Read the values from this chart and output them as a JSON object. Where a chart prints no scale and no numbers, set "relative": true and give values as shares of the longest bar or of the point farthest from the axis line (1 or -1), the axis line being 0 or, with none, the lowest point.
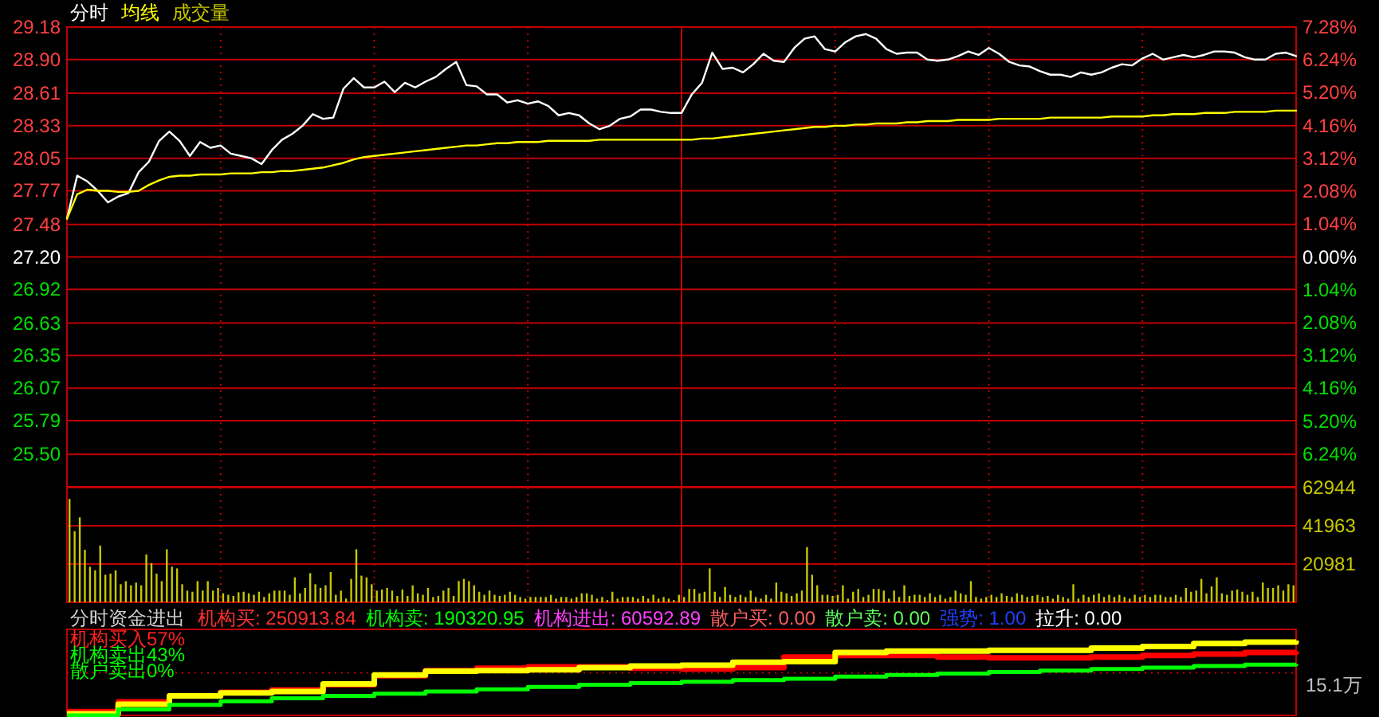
{
  "chart_data": [
    {
      "type": "line",
      "categories": [
        null,
        null,
        null,
        null,
        null,
        null,
        null,
        null,
        null,
        null,
        null,
        null,
        null,
        null,
        null,
        null,
        null,
        null,
        null,
        null,
        null,
        null,
        null,
        null,
        null,
        null,
        null,
        null,
        null,
        null,
        null,
        null,
        null,
        null,
        null,
        null,
        null,
        null,
        null,
        null,
        null,
        null,
        null,
        null,
        null,
        null,
        null,
        null,
        null,
        null,
        null,
        null,
        null,
        null,
        null,
        null,
        null,
        null,
        null,
        null,
        null,
        null,
        null,
        null,
        null,
        null,
        null,
        null,
        null,
        null,
        null,
        null,
        null,
        null,
        null,
        null,
        null,
        null,
        null,
        null,
        null,
        null,
        null,
        null,
        null,
        null,
        null,
        null,
        null,
        null,
        null,
        null,
        null,
        null,
        null,
        null,
        null,
        null,
        null,
        null,
        null,
        null,
        null,
        null,
        null,
        null,
        null,
        null,
        null,
        null,
        null,
        null,
        null,
        null,
        null,
        null,
        null,
        null,
        null,
        null,
        null
      ],
      "ylim": [
        25.22,
        29.18
      ],
      "yticks": [
        29.18,
        {
          "value": 28.9,
          "label": "28.90"
        },
        28.61,
        28.33,
        28.05,
        27.77,
        27.48,
        {
          "value": 27.2,
          "label": "27.20"
        },
        26.92,
        26.63,
        26.35,
        26.07,
        25.79,
        {
          "value": 25.5,
          "label": "25.50"
        }
      ],
      "y2lim": [
        -7.28,
        7.28
      ],
      "y2ticks": [
        {
          "value": 7.28,
          "label": "7.28%"
        },
        {
          "value": 6.24,
          "label": "6.24%"
        },
        {
          "value": 5.2,
          "label": "5.20%"
        },
        {
          "value": 4.16,
          "label": "4.16%"
        },
        {
          "value": 3.12,
          "label": "3.12%"
        },
        {
          "value": 2.08,
          "label": "2.08%"
        },
        {
          "value": 1.04,
          "label": "1.04%"
        },
        {
          "value": 0,
          "label": "0.00%"
        },
        {
          "value": -1.04,
          "label": "1.04%"
        },
        {
          "value": -2.08,
          "label": "2.08%"
        },
        {
          "value": -3.12,
          "label": "3.12%"
        },
        {
          "value": -4.16,
          "label": "4.16%"
        },
        {
          "value": -5.2,
          "label": "5.20%"
        },
        {
          "value": -6.24,
          "label": "6.24%"
        }
      ],
      "grid": true,
      "series": [
        {
          "name": "分时",
          "color": "#ffffff",
          "values": [
            27.53,
            27.9,
            27.85,
            27.77,
            27.67,
            27.72,
            27.75,
            27.93,
            28.02,
            28.2,
            28.28,
            28.2,
            28.07,
            28.19,
            28.14,
            28.16,
            28.09,
            28.07,
            28.05,
            28.0,
            28.12,
            28.21,
            28.26,
            28.33,
            28.43,
            28.39,
            28.4,
            28.65,
            28.74,
            28.66,
            28.66,
            28.71,
            28.62,
            28.7,
            28.66,
            28.71,
            28.75,
            28.82,
            28.88,
            28.68,
            28.67,
            28.6,
            28.6,
            28.53,
            28.55,
            28.52,
            28.54,
            28.5,
            28.42,
            28.44,
            28.42,
            28.35,
            28.3,
            28.33,
            28.39,
            28.41,
            28.47,
            28.47,
            28.45,
            28.44,
            28.44,
            28.6,
            28.7,
            28.96,
            28.82,
            28.83,
            28.79,
            28.86,
            28.95,
            28.89,
            28.88,
            29.0,
            29.08,
            29.1,
            28.99,
            28.97,
            29.05,
            29.1,
            29.12,
            29.08,
            28.99,
            28.95,
            28.96,
            28.96,
            28.9,
            28.89,
            28.9,
            28.93,
            28.97,
            28.94,
            29.0,
            28.95,
            28.88,
            28.85,
            28.84,
            28.8,
            28.77,
            28.77,
            28.75,
            28.79,
            28.77,
            28.79,
            28.83,
            28.86,
            28.85,
            28.91,
            28.95,
            28.9,
            28.92,
            28.94,
            28.92,
            28.94,
            28.97,
            28.97,
            28.96,
            28.92,
            28.9,
            28.9,
            28.95,
            28.96,
            28.93
          ]
        },
        {
          "name": "均线",
          "color": "#ffff00",
          "values": [
            27.53,
            27.74,
            27.78,
            27.77,
            27.77,
            27.76,
            27.76,
            27.77,
            27.82,
            27.86,
            27.89,
            27.9,
            27.9,
            27.91,
            27.91,
            27.91,
            27.92,
            27.92,
            27.92,
            27.93,
            27.93,
            27.94,
            27.94,
            27.95,
            27.96,
            27.97,
            27.99,
            28.01,
            28.04,
            28.06,
            28.07,
            28.08,
            28.09,
            28.1,
            28.11,
            28.12,
            28.13,
            28.14,
            28.15,
            28.16,
            28.16,
            28.17,
            28.18,
            28.18,
            28.19,
            28.19,
            28.19,
            28.2,
            28.2,
            28.2,
            28.2,
            28.2,
            28.21,
            28.21,
            28.21,
            28.21,
            28.21,
            28.21,
            28.21,
            28.21,
            28.21,
            28.21,
            28.22,
            28.22,
            28.23,
            28.24,
            28.25,
            28.26,
            28.27,
            28.28,
            28.29,
            28.3,
            28.31,
            28.32,
            28.32,
            28.33,
            28.33,
            28.34,
            28.34,
            28.35,
            28.35,
            28.35,
            28.36,
            28.36,
            28.37,
            28.37,
            28.37,
            28.38,
            28.38,
            28.38,
            28.38,
            28.39,
            28.39,
            28.39,
            28.39,
            28.39,
            28.4,
            28.4,
            28.4,
            28.4,
            28.4,
            28.4,
            28.41,
            28.41,
            28.41,
            28.41,
            28.42,
            28.42,
            28.43,
            28.43,
            28.43,
            28.44,
            28.44,
            28.44,
            28.45,
            28.45,
            28.45,
            28.45,
            28.46,
            28.46,
            28.46
          ]
        }
      ]
    },
    {
      "type": "bar",
      "categories": [
        null,
        null,
        null,
        null,
        null,
        null,
        null,
        null,
        null,
        null,
        null,
        null,
        null,
        null,
        null,
        null,
        null,
        null,
        null,
        null,
        null,
        null,
        null,
        null,
        null,
        null,
        null,
        null,
        null,
        null,
        null,
        null,
        null,
        null,
        null,
        null,
        null,
        null,
        null,
        null,
        null,
        null,
        null,
        null,
        null,
        null,
        null,
        null,
        null,
        null,
        null,
        null,
        null,
        null,
        null,
        null,
        null,
        null,
        null,
        null,
        null,
        null,
        null,
        null,
        null,
        null,
        null,
        null,
        null,
        null,
        null,
        null,
        null,
        null,
        null,
        null,
        null,
        null,
        null,
        null,
        null,
        null,
        null,
        null,
        null,
        null,
        null,
        null,
        null,
        null,
        null,
        null,
        null,
        null,
        null,
        null,
        null,
        null,
        null,
        null,
        null,
        null,
        null,
        null,
        null,
        null,
        null,
        null,
        null,
        null,
        null,
        null,
        null,
        null,
        null,
        null,
        null,
        null,
        null,
        null,
        null,
        null,
        null,
        null,
        null,
        null,
        null,
        null,
        null,
        null,
        null,
        null,
        null,
        null,
        null,
        null,
        null,
        null,
        null,
        null,
        null,
        null,
        null,
        null,
        null,
        null,
        null,
        null,
        null,
        null,
        null,
        null,
        null,
        null,
        null,
        null,
        null,
        null,
        null,
        null,
        null,
        null,
        null,
        null,
        null,
        null,
        null,
        null,
        null,
        null,
        null,
        null,
        null,
        null,
        null,
        null,
        null,
        null,
        null,
        null,
        null,
        null,
        null,
        null,
        null,
        null,
        null,
        null,
        null,
        null,
        null,
        null,
        null,
        null,
        null,
        null,
        null,
        null,
        null,
        null,
        null,
        null,
        null,
        null,
        null,
        null,
        null,
        null,
        null,
        null,
        null,
        null,
        null,
        null,
        null,
        null,
        null,
        null,
        null,
        null,
        null,
        null,
        null,
        null,
        null,
        null,
        null,
        null,
        null,
        null,
        null,
        null,
        null,
        null,
        null,
        null,
        null,
        null,
        null,
        null
      ],
      "y2lim": [
        0,
        62944
      ],
      "y2ticks": [
        20981,
        41963,
        62944
      ],
      "grid": true,
      "series": [
        {
          "name": "成交量",
          "color": "#c8c800",
          "axis": "y2",
          "values": [
            56700,
            39000,
            46600,
            28800,
            19500,
            17500,
            31100,
            15100,
            15700,
            17500,
            9900,
            11600,
            9300,
            10800,
            9300,
            26200,
            21500,
            15700,
            11600,
            29100,
            19500,
            18600,
            9900,
            6400,
            5800,
            11600,
            6400,
            11600,
            6400,
            7900,
            4900,
            4100,
            3500,
            5500,
            5800,
            4900,
            4100,
            5800,
            2900,
            4900,
            6400,
            6400,
            6400,
            4100,
            13700,
            4900,
            7900,
            16000,
            9900,
            7900,
            9300,
            16600,
            4100,
            6400,
            2000,
            12800,
            29100,
            14600,
            13700,
            9900,
            6400,
            7000,
            7900,
            6400,
            3500,
            7000,
            3500,
            9300,
            4900,
            4100,
            7900,
            2900,
            3500,
            6400,
            7900,
            3500,
            11600,
            12800,
            11600,
            9300,
            5800,
            4100,
            6400,
            4100,
            3500,
            4100,
            5800,
            4100,
            2900,
            2000,
            2900,
            2900,
            2900,
            2900,
            4100,
            2000,
            2900,
            2900,
            2000,
            2900,
            4900,
            4900,
            4100,
            2000,
            2900,
            1200,
            5800,
            2000,
            2900,
            2900,
            2900,
            2000,
            3500,
            2000,
            4100,
            2000,
            2900,
            2000,
            1200,
            4100,
            2900,
            7300,
            7300,
            4900,
            5800,
            18600,
            5800,
            2900,
            8400,
            4100,
            2900,
            4100,
            2900,
            6400,
            2900,
            2000,
            4100,
            2000,
            10800,
            5800,
            4900,
            3500,
            4900,
            6400,
            30300,
            15100,
            9300,
            4100,
            4100,
            3500,
            4100,
            9300,
            2000,
            5800,
            7300,
            2900,
            4100,
            7300,
            7300,
            6400,
            2000,
            6400,
            2900,
            9300,
            3500,
            4100,
            4100,
            2900,
            4900,
            2900,
            4100,
            2000,
            2900,
            6400,
            4900,
            4100,
            11600,
            2900,
            2000,
            2900,
            4100,
            2900,
            4900,
            3500,
            2900,
            4900,
            4100,
            2900,
            3500,
            4100,
            2900,
            3500,
            2000,
            4100,
            2900,
            2000,
            9900,
            2000,
            4100,
            2900,
            4100,
            4900,
            2900,
            4100,
            2900,
            4100,
            2900,
            2000,
            4100,
            2900,
            4100,
            2900,
            4100,
            4100,
            2900,
            2900,
            4100,
            2900,
            7900,
            5800,
            6400,
            12800,
            4900,
            8700,
            13700,
            4900,
            4100,
            6400,
            7000,
            5800,
            4100,
            5800,
            2900,
            10800,
            7900,
            7900,
            9300,
            6400,
            9900,
            9300
          ]
        }
      ]
    },
    {
      "type": "step",
      "relative": true,
      "title": "分时资金进出",
      "categories": [
        null,
        null,
        null,
        null,
        null,
        null,
        null,
        null,
        null,
        null,
        null,
        null,
        null,
        null,
        null,
        null,
        null,
        null,
        null,
        null,
        null,
        null,
        null,
        null,
        null
      ],
      "annotations": [
        "机构买: 250913.84",
        "机构卖: 190320.95",
        "机构进出: 60592.89",
        "散户买: 0.00",
        "散户卖: 0.00",
        "强势: 1.00",
        "拉升: 0.00",
        "机构买入57%",
        "机构卖出43%",
        "散户卖出0%"
      ],
      "ref_lines": [
        {
          "axis": "y",
          "value": 0.57,
          "label": "15.1万",
          "color": "#c00000",
          "line_style": "dotted"
        }
      ],
      "series": [
        {
          "color": "#ff0000",
          "values": [
            0.05,
            0.18,
            0.26,
            0.31,
            0.34,
            0.41,
            0.53,
            0.6,
            0.63,
            0.65,
            0.65,
            0.63,
            0.62,
            0.64,
            0.78,
            0.8,
            0.8,
            0.78,
            0.77,
            0.77,
            0.78,
            0.8,
            0.82,
            0.84,
            0.86
          ]
        },
        {
          "color": "#ffff00",
          "values": [
            0.02,
            0.15,
            0.26,
            0.3,
            0.32,
            0.42,
            0.54,
            0.59,
            0.6,
            0.61,
            0.64,
            0.66,
            0.67,
            0.71,
            0.72,
            0.84,
            0.86,
            0.86,
            0.87,
            0.87,
            0.9,
            0.92,
            0.96,
            0.98,
            1
          ]
        },
        {
          "color": "#00ff00",
          "values": [
            0,
            0.08,
            0.14,
            0.19,
            0.23,
            0.26,
            0.29,
            0.32,
            0.35,
            0.38,
            0.41,
            0.43,
            0.45,
            0.47,
            0.49,
            0.52,
            0.54,
            0.56,
            0.58,
            0.6,
            0.62,
            0.64,
            0.66,
            0.68,
            0.69
          ]
        }
      ]
    }
  ]
}
